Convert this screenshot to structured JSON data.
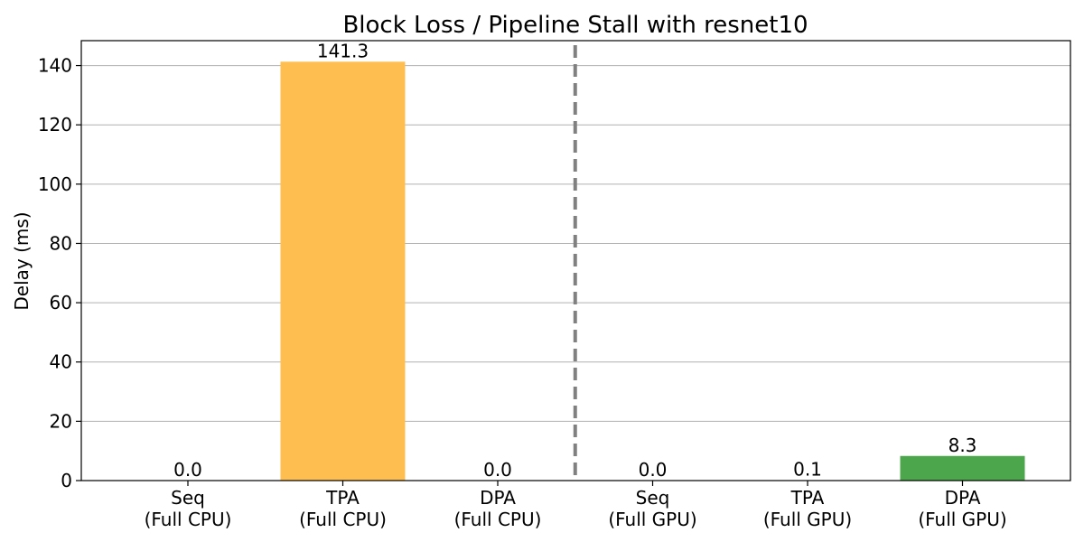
{
  "chart_data": {
    "type": "bar",
    "title": "Block Loss / Pipeline Stall with resnet10",
    "xlabel": "",
    "ylabel": "Delay (ms)",
    "ylim": [
      0,
      148.4
    ],
    "yticks": [
      0,
      20,
      40,
      60,
      80,
      100,
      120,
      140
    ],
    "grid": "y",
    "categories": [
      [
        "Seq",
        "(Full CPU)"
      ],
      [
        "TPA",
        "(Full CPU)"
      ],
      [
        "DPA",
        "(Full CPU)"
      ],
      [
        "Seq",
        "(Full GPU)"
      ],
      [
        "TPA",
        "(Full GPU)"
      ],
      [
        "DPA",
        "(Full GPU)"
      ]
    ],
    "values": [
      0.0,
      141.3,
      0.0,
      0.0,
      0.1,
      8.3
    ],
    "value_labels": [
      "0.0",
      "141.3",
      "0.0",
      "0.0",
      "0.1",
      "8.3"
    ],
    "bar_colors": [
      "#ffbf50",
      "#ffbf50",
      "#ffbf50",
      "#4ca64c",
      "#4ca64c",
      "#4ca64c"
    ],
    "divider": {
      "between": [
        2,
        3
      ],
      "color": "#808080",
      "style": "dashed"
    }
  }
}
